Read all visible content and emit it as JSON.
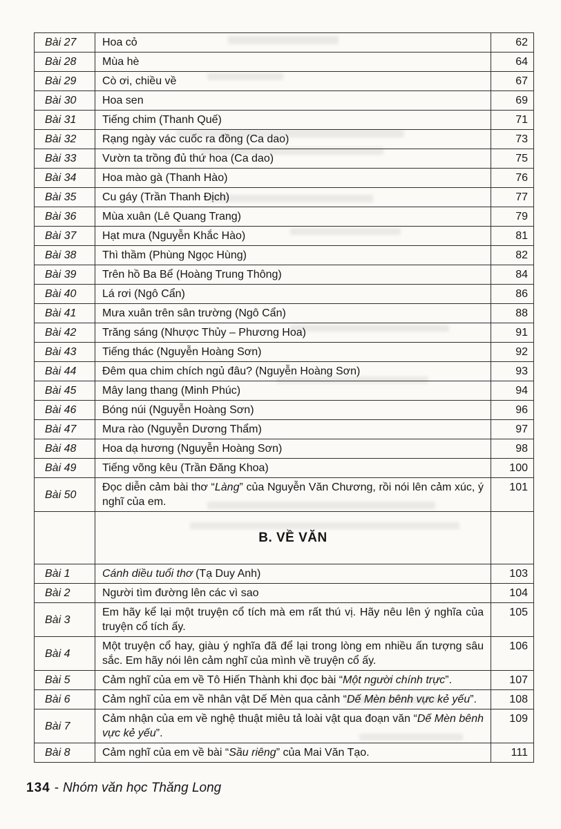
{
  "toc": {
    "section_a_rows": [
      {
        "label": "Bài 27",
        "title": [
          {
            "text": "Hoa cỏ"
          }
        ],
        "page": "62"
      },
      {
        "label": "Bài 28",
        "title": [
          {
            "text": "Mùa hè"
          }
        ],
        "page": "64"
      },
      {
        "label": "Bài 29",
        "title": [
          {
            "text": "Cò ơi, chiều về"
          }
        ],
        "page": "67"
      },
      {
        "label": "Bài 30",
        "title": [
          {
            "text": "Hoa sen"
          }
        ],
        "page": "69"
      },
      {
        "label": "Bài 31",
        "title": [
          {
            "text": "Tiếng chim (Thanh Quế)"
          }
        ],
        "page": "71"
      },
      {
        "label": "Bài 32",
        "title": [
          {
            "text": "Rạng ngày vác cuốc ra đồng (Ca dao)"
          }
        ],
        "page": "73"
      },
      {
        "label": "Bài 33",
        "title": [
          {
            "text": "Vườn ta trồng đủ thứ hoa (Ca dao)"
          }
        ],
        "page": "75"
      },
      {
        "label": "Bài 34",
        "title": [
          {
            "text": "Hoa mào gà (Thanh Hào)"
          }
        ],
        "page": "76"
      },
      {
        "label": "Bài 35",
        "title": [
          {
            "text": "Cu gáy (Trần Thanh Địch)"
          }
        ],
        "page": "77"
      },
      {
        "label": "Bài 36",
        "title": [
          {
            "text": "Mùa xuân (Lê Quang Trang)"
          }
        ],
        "page": "79"
      },
      {
        "label": "Bài 37",
        "title": [
          {
            "text": "Hạt mưa (Nguyễn Khắc Hào)"
          }
        ],
        "page": "81"
      },
      {
        "label": "Bài 38",
        "title": [
          {
            "text": "Thì thầm (Phùng Ngọc Hùng)"
          }
        ],
        "page": "82"
      },
      {
        "label": "Bài 39",
        "title": [
          {
            "text": "Trên hồ Ba Bể (Hoàng Trung Thông)"
          }
        ],
        "page": "84"
      },
      {
        "label": "Bài 40",
        "title": [
          {
            "text": "Lá rơi (Ngô Cẩn)"
          }
        ],
        "page": "86"
      },
      {
        "label": "Bài 41",
        "title": [
          {
            "text": "Mưa xuân trên sân trường (Ngô Cẩn)"
          }
        ],
        "page": "88"
      },
      {
        "label": "Bài 42",
        "title": [
          {
            "text": "Trăng sáng (Nhược Thủy – Phương Hoa)"
          }
        ],
        "page": "91"
      },
      {
        "label": "Bài 43",
        "title": [
          {
            "text": "Tiếng thác (Nguyễn Hoàng Sơn)"
          }
        ],
        "page": "92"
      },
      {
        "label": "Bài 44",
        "title": [
          {
            "text": "Đêm qua chim chích ngủ đâu? (Nguyễn Hoàng Sơn)"
          }
        ],
        "page": "93"
      },
      {
        "label": "Bài 45",
        "title": [
          {
            "text": "Mây lang thang (Minh Phúc)"
          }
        ],
        "page": "94"
      },
      {
        "label": "Bài 46",
        "title": [
          {
            "text": "Bóng núi (Nguyễn Hoàng Sơn)"
          }
        ],
        "page": "96"
      },
      {
        "label": "Bài 47",
        "title": [
          {
            "text": "Mưa rào (Nguyễn Dương Thẩm)"
          }
        ],
        "page": "97"
      },
      {
        "label": "Bài 48",
        "title": [
          {
            "text": "Hoa dạ hương (Nguyễn Hoàng Sơn)"
          }
        ],
        "page": "98"
      },
      {
        "label": "Bài 49",
        "title": [
          {
            "text": "Tiếng võng kêu (Trần Đăng Khoa)"
          }
        ],
        "page": "100"
      },
      {
        "label": "Bài 50",
        "title": [
          {
            "text": "Đọc diễn cảm bài thơ “"
          },
          {
            "text": "Làng",
            "italic": true
          },
          {
            "text": "” của Nguyễn Văn Chương, rồi nói lên cảm xúc, ý nghĩ của em."
          }
        ],
        "page": "101"
      }
    ],
    "section_b_header": "B. VỀ VĂN",
    "section_b_rows": [
      {
        "label": "Bài 1",
        "title": [
          {
            "text": "Cánh diều tuổi thơ",
            "italic": true
          },
          {
            "text": " (Tạ Duy Anh)"
          }
        ],
        "page": "103"
      },
      {
        "label": "Bài 2",
        "title": [
          {
            "text": "Người tìm đường lên các vì sao"
          }
        ],
        "page": "104"
      },
      {
        "label": "Bài 3",
        "title": [
          {
            "text": "Em hãy kể lại một truyện cổ tích mà em rất thú vị. Hãy nêu lên ý nghĩa của truyện cổ tích ấy."
          }
        ],
        "page": "105"
      },
      {
        "label": "Bài 4",
        "title": [
          {
            "text": "Một truyện cổ hay, giàu ý nghĩa đã để lại trong lòng em nhiều ấn tượng sâu sắc. Em hãy nói lên cảm nghĩ của mình về truyện cổ ấy."
          }
        ],
        "page": "106"
      },
      {
        "label": "Bài 5",
        "title": [
          {
            "text": "Cảm nghĩ của em về Tô Hiến Thành khi đọc bài “"
          },
          {
            "text": "Một người chính trực",
            "italic": true
          },
          {
            "text": "”."
          }
        ],
        "page": "107"
      },
      {
        "label": "Bài 6",
        "title": [
          {
            "text": "Cảm nghĩ của em về nhân vật Dế Mèn qua cảnh “"
          },
          {
            "text": "Dế Mèn bênh vực kẻ yếu",
            "italic": true
          },
          {
            "text": "”."
          }
        ],
        "page": "108"
      },
      {
        "label": "Bài 7",
        "title": [
          {
            "text": "Cảm nhận của em về nghệ thuật miêu tả loài vật qua đoạn văn “"
          },
          {
            "text": "Dế Mèn bênh vực kẻ yếu",
            "italic": true
          },
          {
            "text": "”."
          }
        ],
        "page": "109"
      },
      {
        "label": "Bài 8",
        "title": [
          {
            "text": "Cảm nghĩ của em về bài “"
          },
          {
            "text": "Sầu riêng",
            "italic": true
          },
          {
            "text": "” của Mai Văn Tạo."
          }
        ],
        "page": "111"
      }
    ]
  },
  "footer": {
    "page_number": "134",
    "separator": "-",
    "imprint": "Nhóm văn học Thăng Long"
  }
}
